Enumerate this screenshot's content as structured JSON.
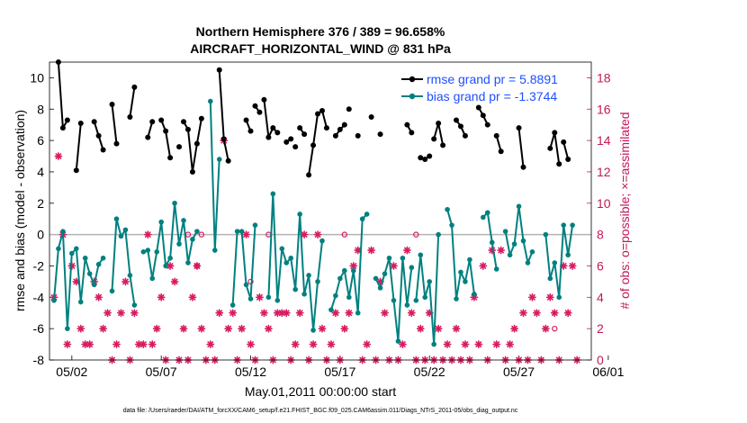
{
  "chart_data": {
    "type": "line",
    "title_line1": "Northern Hemisphere 376 / 389 = 96.658%",
    "title_line2": "AIRCRAFT_HORIZONTAL_WIND @ 831 hPa",
    "xlabel": "May.01,2011 00:00:00 start",
    "ylabel_left": "rmse and bias (model - observation)",
    "ylabel_right": "# of obs: o=possible; ×=assimilated",
    "footer": "data file: /Users/raeder/DAI/ATM_forcXX/CAM6_setup/f.e21.FHIST_BGC.f09_025.CAM6assim.011/Diags_NTrS_2011-05/obs_diag_output.nc",
    "xlim": [
      0.75,
      31.05
    ],
    "ylim_left": [
      -8,
      11
    ],
    "ylim_right": [
      0,
      19
    ],
    "x_ticks": [
      2,
      7,
      12,
      17,
      22,
      27,
      32
    ],
    "x_tick_labels": [
      "05/02",
      "05/07",
      "05/12",
      "05/17",
      "05/22",
      "05/27",
      "06/01"
    ],
    "y_ticks_left": [
      -8,
      -6,
      -4,
      -2,
      0,
      2,
      4,
      6,
      8,
      10
    ],
    "y_ticks_right": [
      0,
      2,
      4,
      6,
      8,
      10,
      12,
      14,
      16,
      18
    ],
    "legend": {
      "rmse_label": "rmse grand pr = 5.8891",
      "bias_label": "bias grand pr = -1.3744",
      "position": "top-right"
    },
    "colors": {
      "rmse": "#000000",
      "bias": "#008080",
      "counts": "#d81b60",
      "right_axis": "#c2185b",
      "legend_text": "#1f4fff",
      "zero_line": "#b3b3b3"
    },
    "rmse_segments": [
      [
        [
          1.25,
          11.0
        ],
        [
          1.5,
          6.8
        ],
        [
          1.75,
          7.3
        ]
      ],
      [
        [
          2.25,
          4.1
        ],
        [
          2.5,
          7.1
        ]
      ],
      [
        [
          3.25,
          7.2
        ],
        [
          3.5,
          6.3
        ],
        [
          3.75,
          5.4
        ]
      ],
      [
        [
          4.25,
          8.3
        ],
        [
          4.5,
          5.8
        ]
      ],
      [
        [
          5.25,
          7.5
        ],
        [
          5.5,
          9.4
        ]
      ],
      [
        [
          6.25,
          6.2
        ],
        [
          6.5,
          7.2
        ]
      ],
      [
        [
          7.0,
          7.3
        ],
        [
          7.25,
          6.6
        ],
        [
          7.5,
          4.9
        ]
      ],
      [
        [
          8.0,
          5.6
        ]
      ],
      [
        [
          8.25,
          7.2
        ],
        [
          8.5,
          6.7
        ],
        [
          8.75,
          4.0
        ],
        [
          9.0,
          5.8
        ],
        [
          9.25,
          7.4
        ]
      ],
      [
        [
          10.25,
          10.5
        ],
        [
          10.5,
          6.1
        ],
        [
          10.75,
          4.7
        ]
      ],
      [
        [
          11.75,
          7.3
        ],
        [
          12.0,
          6.6
        ]
      ],
      [
        [
          12.25,
          8.2
        ],
        [
          12.5,
          7.8
        ]
      ],
      [
        [
          12.75,
          8.6
        ],
        [
          13.0,
          6.2
        ],
        [
          13.25,
          6.8
        ],
        [
          13.5,
          6.5
        ]
      ],
      [
        [
          14.0,
          5.9
        ],
        [
          14.25,
          6.1
        ]
      ],
      [
        [
          14.5,
          5.6
        ]
      ],
      [
        [
          14.75,
          6.8
        ],
        [
          15.0,
          6.4
        ]
      ],
      [
        [
          15.25,
          3.8
        ],
        [
          15.5,
          5.7
        ],
        [
          15.75,
          7.7
        ],
        [
          16.0,
          7.9
        ],
        [
          16.25,
          6.8
        ]
      ],
      [
        [
          16.75,
          6.3
        ],
        [
          17.0,
          6.7
        ],
        [
          17.25,
          7.0
        ]
      ],
      [
        [
          17.5,
          8.0
        ]
      ],
      [
        [
          18.0,
          6.3
        ]
      ],
      [
        [
          18.75,
          7.5
        ]
      ],
      [
        [
          19.25,
          6.4
        ]
      ],
      [
        [
          20.75,
          7.0
        ],
        [
          21.0,
          6.5
        ]
      ],
      [
        [
          21.5,
          4.9
        ],
        [
          21.75,
          4.8
        ],
        [
          22.0,
          5.0
        ]
      ],
      [
        [
          22.25,
          6.1
        ],
        [
          22.5,
          7.1
        ],
        [
          22.75,
          5.7
        ]
      ],
      [
        [
          23.5,
          7.3
        ],
        [
          23.75,
          6.9
        ],
        [
          24.0,
          6.3
        ]
      ],
      [
        [
          24.75,
          8.1
        ],
        [
          25.0,
          7.6
        ],
        [
          25.25,
          7.0
        ]
      ],
      [
        [
          25.75,
          6.3
        ],
        [
          26.0,
          5.3
        ]
      ],
      [
        [
          27.0,
          6.8
        ],
        [
          27.25,
          4.3
        ]
      ],
      [
        [
          28.75,
          5.5
        ],
        [
          29.0,
          6.5
        ],
        [
          29.25,
          4.5
        ]
      ],
      [
        [
          29.5,
          5.9
        ],
        [
          29.75,
          4.8
        ]
      ]
    ],
    "rmse_points": [
      [
        1.25,
        11.0
      ],
      [
        1.5,
        6.8
      ],
      [
        1.75,
        7.3
      ],
      [
        2.25,
        4.1
      ],
      [
        2.5,
        7.1
      ],
      [
        3.25,
        7.2
      ],
      [
        3.5,
        6.3
      ],
      [
        3.75,
        5.4
      ],
      [
        4.25,
        8.3
      ],
      [
        4.5,
        5.8
      ],
      [
        5.25,
        7.5
      ],
      [
        5.5,
        9.4
      ],
      [
        6.25,
        6.2
      ],
      [
        6.5,
        7.2
      ],
      [
        7.0,
        7.3
      ],
      [
        7.25,
        6.6
      ],
      [
        7.5,
        4.9
      ],
      [
        8.0,
        5.6
      ],
      [
        8.25,
        7.2
      ],
      [
        8.5,
        6.7
      ],
      [
        8.75,
        4.0
      ],
      [
        9.0,
        5.8
      ],
      [
        9.25,
        7.4
      ],
      [
        10.25,
        10.5
      ],
      [
        10.5,
        6.1
      ],
      [
        10.75,
        4.7
      ],
      [
        11.75,
        7.3
      ],
      [
        12.0,
        6.6
      ],
      [
        12.25,
        8.2
      ],
      [
        12.5,
        7.8
      ],
      [
        12.75,
        8.6
      ],
      [
        13.0,
        6.2
      ],
      [
        13.25,
        6.8
      ],
      [
        13.5,
        6.5
      ],
      [
        14.0,
        5.9
      ],
      [
        14.25,
        6.1
      ],
      [
        14.5,
        5.6
      ],
      [
        14.75,
        6.8
      ],
      [
        15.0,
        6.4
      ],
      [
        15.25,
        3.8
      ],
      [
        15.5,
        5.7
      ],
      [
        15.75,
        7.7
      ],
      [
        16.0,
        7.9
      ],
      [
        16.25,
        6.8
      ],
      [
        16.75,
        6.3
      ],
      [
        17.0,
        6.7
      ],
      [
        17.25,
        7.0
      ],
      [
        17.5,
        8.0
      ],
      [
        18.0,
        6.3
      ],
      [
        18.75,
        7.5
      ],
      [
        19.25,
        6.4
      ],
      [
        20.75,
        7.0
      ],
      [
        21.0,
        6.5
      ],
      [
        21.5,
        4.9
      ],
      [
        21.75,
        4.8
      ],
      [
        22.0,
        5.0
      ],
      [
        22.25,
        6.1
      ],
      [
        22.5,
        7.1
      ],
      [
        22.75,
        5.7
      ],
      [
        23.5,
        7.3
      ],
      [
        23.75,
        6.9
      ],
      [
        24.0,
        6.3
      ],
      [
        24.75,
        8.1
      ],
      [
        25.0,
        7.6
      ],
      [
        25.25,
        7.0
      ],
      [
        25.75,
        6.3
      ],
      [
        26.0,
        5.3
      ],
      [
        27.0,
        6.8
      ],
      [
        27.25,
        4.3
      ],
      [
        28.75,
        5.5
      ],
      [
        29.0,
        6.5
      ],
      [
        29.25,
        4.5
      ],
      [
        29.5,
        5.9
      ],
      [
        29.75,
        4.8
      ]
    ],
    "bias_segments": [
      [
        [
          1.0,
          -4.2
        ],
        [
          1.25,
          -0.9
        ],
        [
          1.5,
          0.2
        ],
        [
          1.75,
          -6.0
        ],
        [
          2.0,
          -1.2
        ],
        [
          2.25,
          -0.9
        ],
        [
          2.5,
          -4.3
        ],
        [
          2.75,
          -1.5
        ],
        [
          3.0,
          -2.5
        ],
        [
          3.25,
          -3.2
        ],
        [
          3.5,
          -1.9
        ],
        [
          3.75,
          -1.5
        ]
      ],
      [
        [
          4.25,
          -3.6
        ],
        [
          4.5,
          1.0
        ],
        [
          4.75,
          -0.1
        ],
        [
          5.0,
          0.3
        ],
        [
          5.25,
          -2.6
        ],
        [
          5.5,
          -4.5
        ]
      ],
      [
        [
          6.0,
          -1.1
        ],
        [
          6.25,
          -1.0
        ],
        [
          6.5,
          -2.8
        ],
        [
          6.75,
          -1.1
        ],
        [
          7.0,
          0.8
        ],
        [
          7.25,
          -2.0
        ],
        [
          7.5,
          -1.5
        ],
        [
          7.75,
          2.0
        ],
        [
          8.0,
          -0.6
        ],
        [
          8.25,
          0.9
        ],
        [
          8.5,
          -1.8
        ],
        [
          8.75,
          -0.3
        ],
        [
          9.0,
          0.2
        ]
      ],
      [
        [
          9.75,
          8.5
        ],
        [
          10.0,
          -1.0
        ],
        [
          10.25,
          4.8
        ]
      ],
      [
        [
          11.0,
          -4.5
        ],
        [
          11.25,
          0.2
        ],
        [
          11.5,
          0.2
        ],
        [
          11.75,
          -3.2
        ],
        [
          12.0,
          -4.1
        ],
        [
          12.25,
          0.6
        ]
      ],
      [
        [
          13.0,
          -4.0
        ],
        [
          13.25,
          2.6
        ],
        [
          13.5,
          -4.2
        ],
        [
          13.75,
          -0.9
        ],
        [
          14.0,
          -1.8
        ],
        [
          14.25,
          -1.5
        ],
        [
          14.5,
          -3.5
        ],
        [
          14.75,
          1.3
        ],
        [
          15.0,
          -3.8
        ],
        [
          15.25,
          -2.6
        ],
        [
          15.5,
          -6.1
        ],
        [
          15.75,
          -3.0
        ],
        [
          16.0,
          -0.4
        ]
      ],
      [
        [
          16.5,
          -4.8
        ],
        [
          16.75,
          -3.9
        ],
        [
          17.0,
          -2.8
        ],
        [
          17.25,
          -2.3
        ],
        [
          17.5,
          -4.0
        ],
        [
          17.75,
          -2.3
        ],
        [
          18.0,
          -5.0
        ],
        [
          18.25,
          1.0
        ],
        [
          18.5,
          1.3
        ]
      ],
      [
        [
          19.0,
          -2.8
        ],
        [
          19.25,
          -3.4
        ],
        [
          19.5,
          -2.5
        ],
        [
          19.75,
          -1.5
        ],
        [
          20.0,
          -4.2
        ],
        [
          20.25,
          -6.8
        ],
        [
          20.5,
          -1.5
        ],
        [
          20.75,
          -4.5
        ],
        [
          21.0,
          -2.1
        ]
      ],
      [
        [
          21.25,
          -4.2
        ],
        [
          21.5,
          -1.3
        ],
        [
          21.75,
          -4.0
        ],
        [
          22.0,
          -3.0
        ],
        [
          22.25,
          -7.0
        ],
        [
          22.5,
          0.0
        ]
      ],
      [
        [
          23.0,
          1.6
        ],
        [
          23.25,
          0.6
        ],
        [
          23.5,
          -4.1
        ],
        [
          23.75,
          -2.4
        ],
        [
          24.0,
          -3.0
        ],
        [
          24.25,
          -1.6
        ],
        [
          24.5,
          -3.8
        ]
      ],
      [
        [
          25.0,
          1.1
        ],
        [
          25.25,
          1.4
        ],
        [
          25.5,
          -0.5
        ],
        [
          25.75,
          -2.2
        ]
      ],
      [
        [
          26.25,
          0.2
        ],
        [
          26.5,
          -1.3
        ],
        [
          26.75,
          -0.6
        ],
        [
          27.0,
          1.8
        ],
        [
          27.25,
          -0.4
        ],
        [
          27.5,
          -1.8
        ],
        [
          27.75,
          -1.1
        ]
      ],
      [
        [
          28.5,
          0.0
        ],
        [
          28.75,
          -2.8
        ],
        [
          29.0,
          -1.8
        ],
        [
          29.25,
          -4.0
        ],
        [
          29.5,
          0.6
        ],
        [
          29.75,
          -1.3
        ],
        [
          30.0,
          0.6
        ]
      ]
    ],
    "counts_assimilated": [
      [
        1.0,
        4
      ],
      [
        1.25,
        13
      ],
      [
        1.5,
        8
      ],
      [
        1.75,
        1
      ],
      [
        2.0,
        6
      ],
      [
        2.25,
        5
      ],
      [
        2.5,
        2
      ],
      [
        2.75,
        1
      ],
      [
        3.0,
        1
      ],
      [
        3.25,
        5
      ],
      [
        3.5,
        4
      ],
      [
        3.75,
        2
      ],
      [
        4.0,
        3
      ],
      [
        4.25,
        0
      ],
      [
        4.5,
        1
      ],
      [
        4.75,
        3
      ],
      [
        5.0,
        5
      ],
      [
        5.25,
        0
      ],
      [
        5.5,
        3
      ],
      [
        5.75,
        1
      ],
      [
        6.0,
        1
      ],
      [
        6.25,
        8
      ],
      [
        6.5,
        1
      ],
      [
        6.75,
        2
      ],
      [
        7.0,
        4
      ],
      [
        7.25,
        0
      ],
      [
        7.5,
        6
      ],
      [
        7.75,
        5
      ],
      [
        8.0,
        0
      ],
      [
        8.25,
        2
      ],
      [
        8.5,
        0
      ],
      [
        8.75,
        4
      ],
      [
        9.0,
        6
      ],
      [
        9.25,
        2
      ],
      [
        9.5,
        0
      ],
      [
        9.75,
        1
      ],
      [
        10.0,
        0
      ],
      [
        10.25,
        3
      ],
      [
        10.5,
        14
      ],
      [
        10.75,
        2
      ],
      [
        11.0,
        3
      ],
      [
        11.25,
        0
      ],
      [
        11.5,
        2
      ],
      [
        11.75,
        8
      ],
      [
        12.0,
        1
      ],
      [
        12.25,
        0
      ],
      [
        12.5,
        4
      ],
      [
        12.75,
        3
      ],
      [
        13.0,
        2
      ],
      [
        13.25,
        0
      ],
      [
        13.5,
        3
      ],
      [
        13.75,
        3
      ],
      [
        14.0,
        3
      ],
      [
        14.25,
        0
      ],
      [
        14.5,
        1
      ],
      [
        14.75,
        3
      ],
      [
        15.0,
        8
      ],
      [
        15.25,
        0
      ],
      [
        15.5,
        1
      ],
      [
        15.75,
        8
      ],
      [
        16.0,
        2
      ],
      [
        16.25,
        0
      ],
      [
        16.5,
        1
      ],
      [
        16.75,
        3
      ],
      [
        17.0,
        0
      ],
      [
        17.25,
        2
      ],
      [
        17.5,
        3
      ],
      [
        17.75,
        6
      ],
      [
        18.0,
        7
      ],
      [
        18.25,
        0
      ],
      [
        18.5,
        1
      ],
      [
        18.75,
        7
      ],
      [
        19.0,
        0
      ],
      [
        19.25,
        5
      ],
      [
        19.5,
        3
      ],
      [
        19.75,
        0
      ],
      [
        20.0,
        6
      ],
      [
        20.25,
        0
      ],
      [
        20.5,
        1
      ],
      [
        20.75,
        7
      ],
      [
        21.0,
        3
      ],
      [
        21.25,
        0
      ],
      [
        21.5,
        2
      ],
      [
        21.75,
        0
      ],
      [
        22.0,
        3
      ],
      [
        22.25,
        0
      ],
      [
        22.5,
        2
      ],
      [
        22.75,
        0
      ],
      [
        23.0,
        1
      ],
      [
        23.25,
        0
      ],
      [
        23.5,
        2
      ],
      [
        23.75,
        0
      ],
      [
        24.0,
        1
      ],
      [
        24.25,
        0
      ],
      [
        24.5,
        4
      ],
      [
        24.75,
        1
      ],
      [
        25.0,
        6
      ],
      [
        25.25,
        0
      ],
      [
        25.5,
        7
      ],
      [
        25.75,
        1
      ],
      [
        26.0,
        7
      ],
      [
        26.25,
        0
      ],
      [
        26.5,
        1
      ],
      [
        26.75,
        2
      ],
      [
        27.0,
        0
      ],
      [
        27.25,
        3
      ],
      [
        27.5,
        0
      ],
      [
        27.75,
        4
      ],
      [
        28.0,
        3
      ],
      [
        28.25,
        0
      ],
      [
        28.5,
        2
      ],
      [
        28.75,
        4
      ],
      [
        29.0,
        3
      ],
      [
        29.25,
        0
      ],
      [
        29.5,
        6
      ],
      [
        29.75,
        3
      ],
      [
        30.0,
        6
      ],
      [
        30.25,
        0
      ]
    ],
    "counts_possible": [
      [
        8.5,
        8
      ],
      [
        9.0,
        6
      ],
      [
        9.25,
        8
      ],
      [
        12.0,
        5
      ],
      [
        13.0,
        8
      ],
      [
        17.25,
        8
      ],
      [
        21.25,
        8
      ],
      [
        29.0,
        2
      ]
    ]
  }
}
